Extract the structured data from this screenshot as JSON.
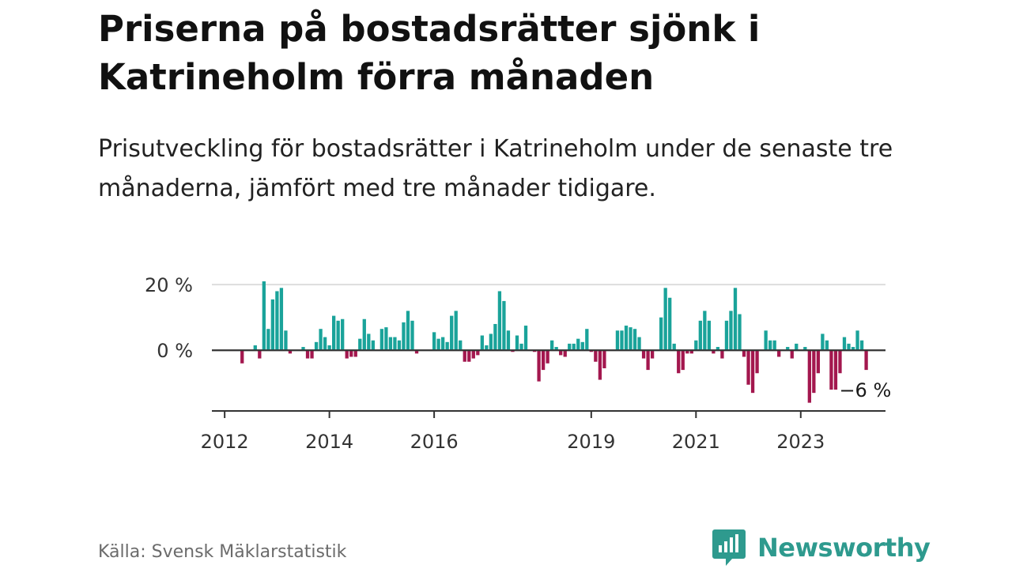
{
  "title": "Priserna på bostadsrätter sjönk i Katrineholm förra månaden",
  "subtitle": "Prisutveckling för bostadsrätter i Katrineholm under de senaste tre månaderna, jämfört med tre månader tidigare.",
  "source": "Källa: Svensk Mäklarstatistik",
  "logo": {
    "text": "Newsworthy",
    "icon": "newsworthy-logo-icon"
  },
  "colors": {
    "positive": "#1aa39a",
    "negative": "#a3174e",
    "grid": "#dddddd",
    "axis": "#333333",
    "brand": "#2e9a8e"
  },
  "chart_data": {
    "type": "bar",
    "unit": "%",
    "x_start": "2012-01",
    "y_ticks": [
      {
        "value": 0,
        "label": "0 %"
      },
      {
        "value": 20,
        "label": "20 %"
      }
    ],
    "ylim": [
      -18.5,
      21
    ],
    "x_ticks": [
      {
        "month_index": 0,
        "label": "2012"
      },
      {
        "month_index": 24,
        "label": "2014"
      },
      {
        "month_index": 48,
        "label": "2016"
      },
      {
        "month_index": 84,
        "label": "2019"
      },
      {
        "month_index": 108,
        "label": "2021"
      },
      {
        "month_index": 132,
        "label": "2023"
      }
    ],
    "grid": true,
    "values": [
      null,
      null,
      null,
      null,
      -4,
      null,
      null,
      1.5,
      -2.5,
      21,
      6.5,
      15.5,
      18,
      19,
      6,
      -1,
      null,
      null,
      1,
      -2.5,
      -2.5,
      2.5,
      6.5,
      4,
      1.5,
      10.5,
      9,
      9.5,
      -2.5,
      -2,
      -2,
      3.5,
      9.5,
      5,
      3,
      null,
      6.5,
      7,
      4,
      4,
      3,
      8.5,
      12,
      9,
      -1,
      null,
      null,
      null,
      5.5,
      3.5,
      4,
      2.5,
      10.5,
      12,
      3,
      -3.5,
      -3.5,
      -2.5,
      -1.5,
      4.5,
      1.5,
      5,
      8,
      18,
      15,
      6,
      -0.5,
      4.5,
      2,
      7.5,
      null,
      -0.5,
      -9.5,
      -6,
      -4,
      3,
      1,
      -1.5,
      -2,
      2,
      2,
      3.5,
      2.5,
      6.5,
      -0.5,
      -3.5,
      -9,
      -5.5,
      null,
      null,
      6,
      6,
      7.5,
      7,
      6.5,
      4,
      -2.5,
      -6,
      -2.5,
      null,
      10,
      19,
      16,
      2,
      -7,
      -6,
      -1,
      -1,
      3,
      9,
      12,
      9,
      -1,
      1,
      -2.5,
      9,
      12,
      19,
      11,
      -2,
      -10.5,
      -13,
      -7,
      null,
      6,
      3,
      3,
      -2,
      null,
      1,
      -2.5,
      2,
      null,
      1,
      -16,
      -13,
      -7,
      5,
      3,
      -12,
      -12,
      -7,
      4,
      2,
      1,
      6,
      3,
      -6
    ],
    "annotation": {
      "month_index": 147,
      "text": "−6 %"
    }
  }
}
